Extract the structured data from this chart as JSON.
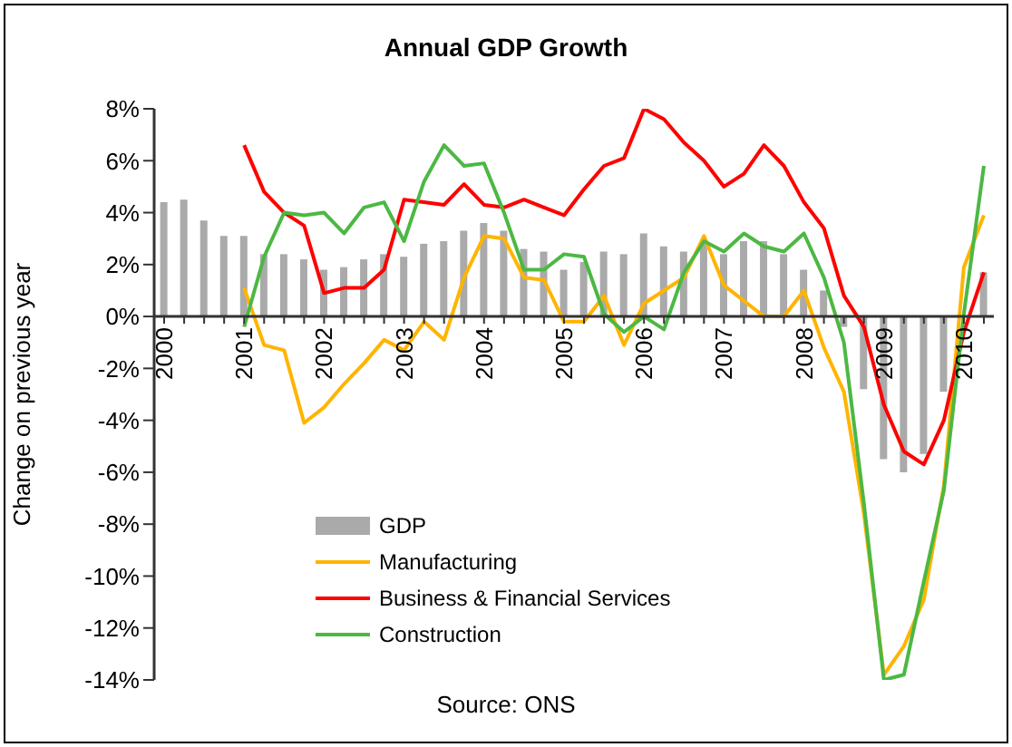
{
  "chart_data": {
    "type": "bar",
    "title": "Annual GDP Growth",
    "ylabel": "Change on previous year",
    "annotations": [
      "Source: ONS"
    ],
    "categories": [
      "2000",
      null,
      null,
      null,
      "2001",
      null,
      null,
      null,
      "2002",
      null,
      null,
      null,
      "2003",
      null,
      null,
      null,
      "2004",
      null,
      null,
      null,
      "2005",
      null,
      null,
      null,
      "2006",
      null,
      null,
      null,
      "2007",
      null,
      null,
      null,
      "2008",
      null,
      null,
      null,
      "2009",
      null,
      null,
      null,
      "2010",
      null
    ],
    "series": [
      {
        "name": "GDP",
        "color": "#aaaaaa",
        "values": [
          4.4,
          4.5,
          3.7,
          3.1,
          3.1,
          2.4,
          2.4,
          2.2,
          1.8,
          1.9,
          2.2,
          2.4,
          2.3,
          2.8,
          2.9,
          3.3,
          3.6,
          3.3,
          2.6,
          2.5,
          1.8,
          2.1,
          2.5,
          2.4,
          3.2,
          2.7,
          2.5,
          2.8,
          2.4,
          2.9,
          2.9,
          2.4,
          1.8,
          1.0,
          -0.4,
          -2.8,
          -5.5,
          -6.0,
          -5.3,
          -2.9,
          null,
          1.7
        ]
      },
      {
        "name": "Manufacturing",
        "type": "line",
        "color": "#ffb400",
        "values": [
          null,
          null,
          null,
          null,
          1.1,
          -1.1,
          -1.3,
          -4.1,
          -3.5,
          -2.6,
          -1.8,
          -0.9,
          -1.3,
          -0.2,
          -0.9,
          1.5,
          3.1,
          3.0,
          1.5,
          1.4,
          -0.2,
          -0.2,
          0.8,
          -1.1,
          0.5,
          1.0,
          1.5,
          3.1,
          1.2,
          0.6,
          0.0,
          0.0,
          1.0,
          -1.2,
          -2.9,
          -7.6,
          -13.8,
          -12.7,
          -10.9,
          -6.5,
          1.9,
          3.9
        ]
      },
      {
        "name": "Business & Financial Services",
        "type": "line",
        "color": "#ff0000",
        "values": [
          null,
          null,
          null,
          null,
          6.6,
          4.8,
          4.0,
          3.5,
          0.9,
          1.1,
          1.1,
          1.8,
          4.5,
          4.4,
          4.3,
          5.1,
          4.3,
          4.2,
          4.5,
          4.2,
          3.9,
          4.9,
          5.8,
          6.1,
          8.0,
          7.6,
          6.7,
          6.0,
          5.0,
          5.5,
          6.6,
          5.8,
          4.4,
          3.4,
          0.8,
          -0.4,
          -3.4,
          -5.2,
          -5.7,
          -4.0,
          -0.6,
          1.7
        ]
      },
      {
        "name": "Construction",
        "type": "line",
        "color": "#4cb843",
        "values": [
          null,
          null,
          null,
          null,
          -0.4,
          2.3,
          4.0,
          3.9,
          4.0,
          3.2,
          4.2,
          4.4,
          2.9,
          5.2,
          6.6,
          5.8,
          5.9,
          4.0,
          1.8,
          1.8,
          2.4,
          2.3,
          0.1,
          -0.6,
          0.0,
          -0.5,
          1.7,
          2.9,
          2.5,
          3.2,
          2.7,
          2.5,
          3.2,
          1.5,
          -1.0,
          -7.2,
          -14.0,
          -13.8,
          -10.2,
          -6.7,
          0.1,
          5.8
        ]
      }
    ],
    "ylim": [
      -14,
      8
    ],
    "yticks": [
      {
        "value": -14,
        "label": "-14%"
      },
      {
        "value": -12,
        "label": "-12%"
      },
      {
        "value": -10,
        "label": "-10%"
      },
      {
        "value": -8,
        "label": "-8%"
      },
      {
        "value": -6,
        "label": "-6%"
      },
      {
        "value": -4,
        "label": "-4%"
      },
      {
        "value": -2,
        "label": "-2%"
      },
      {
        "value": 0,
        "label": "0%"
      },
      {
        "value": 2,
        "label": "2%"
      },
      {
        "value": 4,
        "label": "4%"
      },
      {
        "value": 6,
        "label": "6%"
      },
      {
        "value": 8,
        "label": "8%"
      }
    ],
    "grid": false,
    "legend": "bottom left",
    "marker": "none",
    "line_style": "solid"
  }
}
